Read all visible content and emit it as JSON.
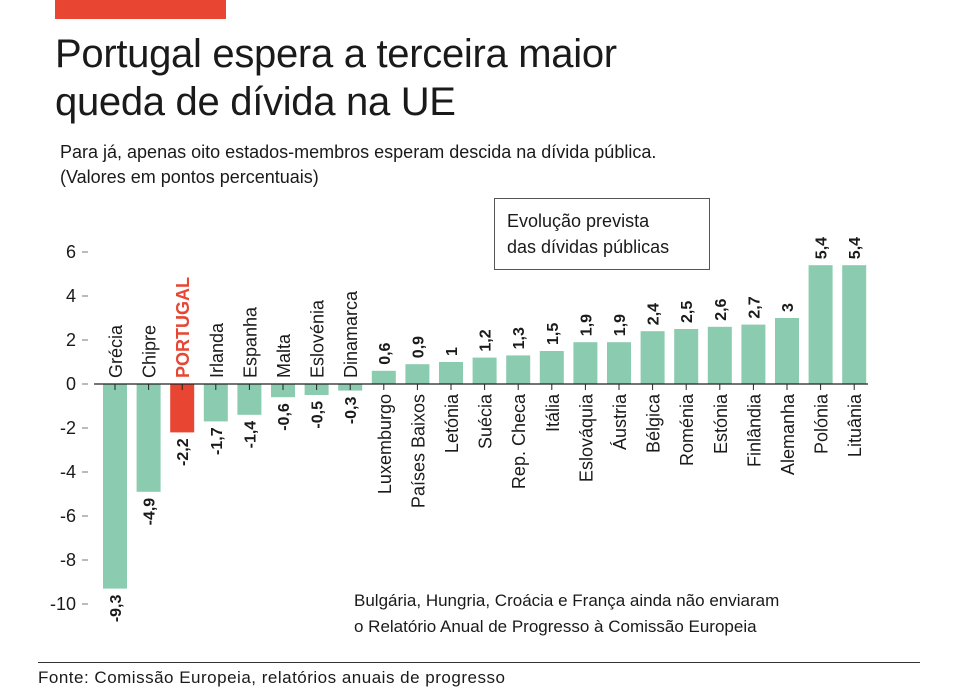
{
  "header": {
    "title_line1": "Portugal espera a terceira maior",
    "title_line2": "queda de dívida na UE",
    "subtitle_line1": "Para já, apenas oito estados-membros esperam descida na dívida pública.",
    "subtitle_line2": "(Valores em pontos percentuais)"
  },
  "legend_box": {
    "line1": "Evolução prevista",
    "line2": "das dívidas públicas"
  },
  "note": {
    "line1": "Bulgária, Hungria, Croácia e França ainda não enviaram",
    "line2": "o Relatório Anual de Progresso à Comissão Europeia"
  },
  "footer": {
    "source": "Fonte: Comissão Europeia, relatórios anuais de progresso"
  },
  "colors": {
    "bar": "#8bcbb0",
    "highlight": "#e84533",
    "accent_bar": "#e84533",
    "text": "#1a1a1a"
  },
  "chart_data": {
    "type": "bar",
    "categories": [
      "Grécia",
      "Chipre",
      "PORTUGAL",
      "Irlanda",
      "Espanha",
      "Malta",
      "Eslovénia",
      "Dinamarca",
      "Luxemburgo",
      "Países Baixos",
      "Letónia",
      "Suécia",
      "Rep. Checa",
      "Itália",
      "Eslováquia",
      "Áustria",
      "Bélgica",
      "Roménia",
      "Estónia",
      "Finlândia",
      "Alemanha",
      "Polónia",
      "Lituânia"
    ],
    "values": [
      -9.3,
      -4.9,
      -2.2,
      -1.7,
      -1.4,
      -0.6,
      -0.5,
      -0.3,
      0.6,
      0.9,
      1,
      1.2,
      1.3,
      1.5,
      1.9,
      1.9,
      2.4,
      2.5,
      2.6,
      2.7,
      3,
      5.4,
      5.4
    ],
    "value_labels": [
      "-9,3",
      "-4,9",
      "-2,2",
      "-1,7",
      "-1,4",
      "-0,6",
      "-0,5",
      "-0,3",
      "0,6",
      "0,9",
      "1",
      "1,2",
      "1,3",
      "1,5",
      "1,9",
      "1,9",
      "2,4",
      "2,5",
      "2,6",
      "2,7",
      "3",
      "5,4",
      "5,4"
    ],
    "highlight_category": "PORTUGAL",
    "yticks": [
      6,
      4,
      2,
      0,
      -2,
      -4,
      -6,
      -8,
      -10
    ],
    "ytick_labels": [
      "6",
      "4",
      "2",
      "0",
      "-2",
      "-4",
      "-6",
      "-8",
      "-10"
    ],
    "ylim": [
      -10,
      6
    ],
    "title": "",
    "xlabel": "",
    "ylabel": "",
    "grid": false,
    "legend": "none"
  }
}
